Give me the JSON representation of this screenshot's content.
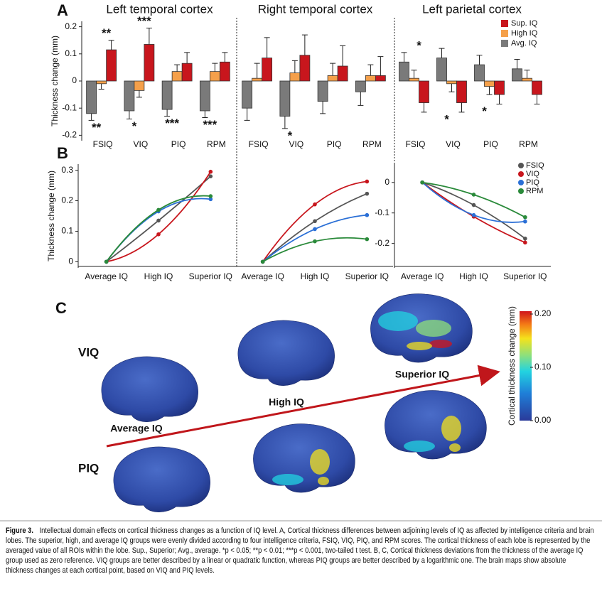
{
  "panel_labels": [
    "A",
    "B",
    "C"
  ],
  "chart_data": [
    {
      "type": "bar",
      "title": "Left temporal cortex",
      "y_label": "Thickness change (mm)",
      "categories": [
        "FSIQ",
        "VIQ",
        "PIQ",
        "RPM"
      ],
      "series": [
        {
          "color": "#7a7a7a",
          "values": [
            -0.12,
            -0.11,
            -0.105,
            -0.11
          ],
          "errors": [
            0.025,
            0.03,
            0.025,
            0.025
          ]
        },
        {
          "color": "#f5a04a",
          "values": [
            -0.01,
            -0.035,
            0.035,
            0.035
          ],
          "errors": [
            0.02,
            0.025,
            0.025,
            0.03
          ]
        },
        {
          "color": "#c8161d",
          "values": [
            0.115,
            0.135,
            0.065,
            0.07
          ],
          "errors": [
            0.035,
            0.06,
            0.04,
            0.035
          ]
        }
      ],
      "ylim": [
        -0.22,
        0.22
      ],
      "yticks": [
        0.2,
        0.1,
        0,
        -0.1,
        -0.2
      ],
      "annotations": [
        "**",
        "***",
        "**",
        "*",
        "***",
        "***"
      ]
    },
    {
      "type": "bar",
      "title": "Right temporal cortex",
      "categories": [
        "FSIQ",
        "VIQ",
        "PIQ",
        "RPM"
      ],
      "series": [
        {
          "color": "#7a7a7a",
          "values": [
            -0.1,
            -0.13,
            -0.075,
            -0.04
          ],
          "errors": [
            0.045,
            0.045,
            0.045,
            0.05
          ]
        },
        {
          "color": "#f5a04a",
          "values": [
            0.01,
            0.03,
            0.02,
            0.02
          ],
          "errors": [
            0.055,
            0.045,
            0.045,
            0.04
          ]
        },
        {
          "color": "#c8161d",
          "values": [
            0.085,
            0.095,
            0.055,
            0.02
          ],
          "errors": [
            0.075,
            0.075,
            0.075,
            0.07
          ]
        }
      ],
      "ylim": [
        -0.22,
        0.22
      ],
      "annotations": [
        "*"
      ]
    },
    {
      "type": "bar",
      "title": "Left parietal cortex",
      "categories": [
        "FSIQ",
        "VIQ",
        "PIQ",
        "RPM"
      ],
      "series": [
        {
          "name": "Avg. IQ",
          "color": "#7a7a7a",
          "values": [
            0.07,
            0.085,
            0.06,
            0.045
          ],
          "errors": [
            0.035,
            0.035,
            0.035,
            0.035
          ]
        },
        {
          "name": "High IQ",
          "color": "#f5a04a",
          "values": [
            0.01,
            -0.01,
            -0.02,
            0.01
          ],
          "errors": [
            0.03,
            0.03,
            0.03,
            0.03
          ]
        },
        {
          "name": "Sup. IQ",
          "color": "#c8161d",
          "values": [
            -0.08,
            -0.08,
            -0.05,
            -0.05
          ],
          "errors": [
            0.035,
            0.035,
            0.035,
            0.035
          ]
        }
      ],
      "ylim": [
        -0.22,
        0.22
      ],
      "legend": "upper right",
      "annotations": [
        "*",
        "*",
        "*"
      ]
    },
    {
      "type": "line",
      "y_label": "Thickness change (mm)",
      "categories": [
        "Average IQ",
        "High IQ",
        "Superior IQ"
      ],
      "series": [
        {
          "color": "#555555",
          "values": [
            0,
            0.135,
            0.28
          ]
        },
        {
          "color": "#c8161d",
          "values": [
            0,
            0.09,
            0.295
          ]
        },
        {
          "color": "#2a6fd6",
          "values": [
            0,
            0.165,
            0.205
          ]
        },
        {
          "color": "#2a8a3a",
          "values": [
            0,
            0.17,
            0.215
          ]
        }
      ],
      "ylim": [
        -0.02,
        0.32
      ],
      "yticks": [
        0,
        0.1,
        0.2,
        0.3
      ]
    },
    {
      "type": "line",
      "categories": [
        "Average IQ",
        "High IQ",
        "Superior IQ"
      ],
      "series": [
        {
          "color": "#555555",
          "values": [
            0,
            0.133,
            0.223
          ]
        },
        {
          "color": "#c8161d",
          "values": [
            0,
            0.188,
            0.263
          ]
        },
        {
          "color": "#2a6fd6",
          "values": [
            0,
            0.107,
            0.153
          ]
        },
        {
          "color": "#2a8a3a",
          "values": [
            0,
            0.067,
            0.074
          ]
        }
      ],
      "ylim": [
        -0.02,
        0.32
      ]
    },
    {
      "type": "line",
      "categories": [
        "Average IQ",
        "High IQ",
        "Superior IQ"
      ],
      "series": [
        {
          "name": "FSIQ",
          "color": "#555555",
          "values": [
            0,
            -0.074,
            -0.184
          ]
        },
        {
          "name": "VIQ",
          "color": "#c8161d",
          "values": [
            0,
            -0.112,
            -0.197
          ]
        },
        {
          "name": "PIQ",
          "color": "#2a6fd6",
          "values": [
            0,
            -0.107,
            -0.128
          ]
        },
        {
          "name": "RPM",
          "color": "#2a8a3a",
          "values": [
            0,
            -0.04,
            -0.114
          ]
        }
      ],
      "ylim": [
        -0.28,
        0.06
      ],
      "yticks": [
        0,
        -0.1,
        -0.2
      ],
      "legend": "upper right"
    }
  ],
  "panel_c": {
    "row_labels": [
      "VIQ",
      "PIQ"
    ],
    "column_labels": [
      "Average IQ",
      "High IQ",
      "Superior IQ"
    ],
    "colorbar": {
      "title": "Cortical thickness change (mm)",
      "lim": [
        0,
        0.2
      ],
      "ticks": [
        {
          "value": 0,
          "label": "0.00"
        },
        {
          "value": 0.1,
          "label": "0.10"
        },
        {
          "value": 0.2,
          "label": "0.20"
        }
      ]
    }
  },
  "caption": {
    "label": "Figure 3.",
    "text": "Intellectual domain effects on cortical thickness changes as a function of IQ level. A, Cortical thickness differences between adjoining levels of IQ as affected by intelligence criteria and brain lobes. The superior, high, and average IQ groups were evenly divided according to four intelligence criteria, FSIQ, VIQ, PIQ, and RPM scores. The cortical thickness of each lobe is represented by the averaged value of all ROIs within the lobe. Sup., Superior; Avg., average. *p < 0.05; **p < 0.01; ***p < 0.001, two-tailed t test. B, C, Cortical thickness deviations from the thickness of the average IQ group used as zero reference. VIQ groups are better described by a linear or quadratic function, whereas PIQ groups are better described by a logarithmic one. The brain maps show absolute thickness changes at each cortical point, based on VIQ and PIQ levels."
  }
}
